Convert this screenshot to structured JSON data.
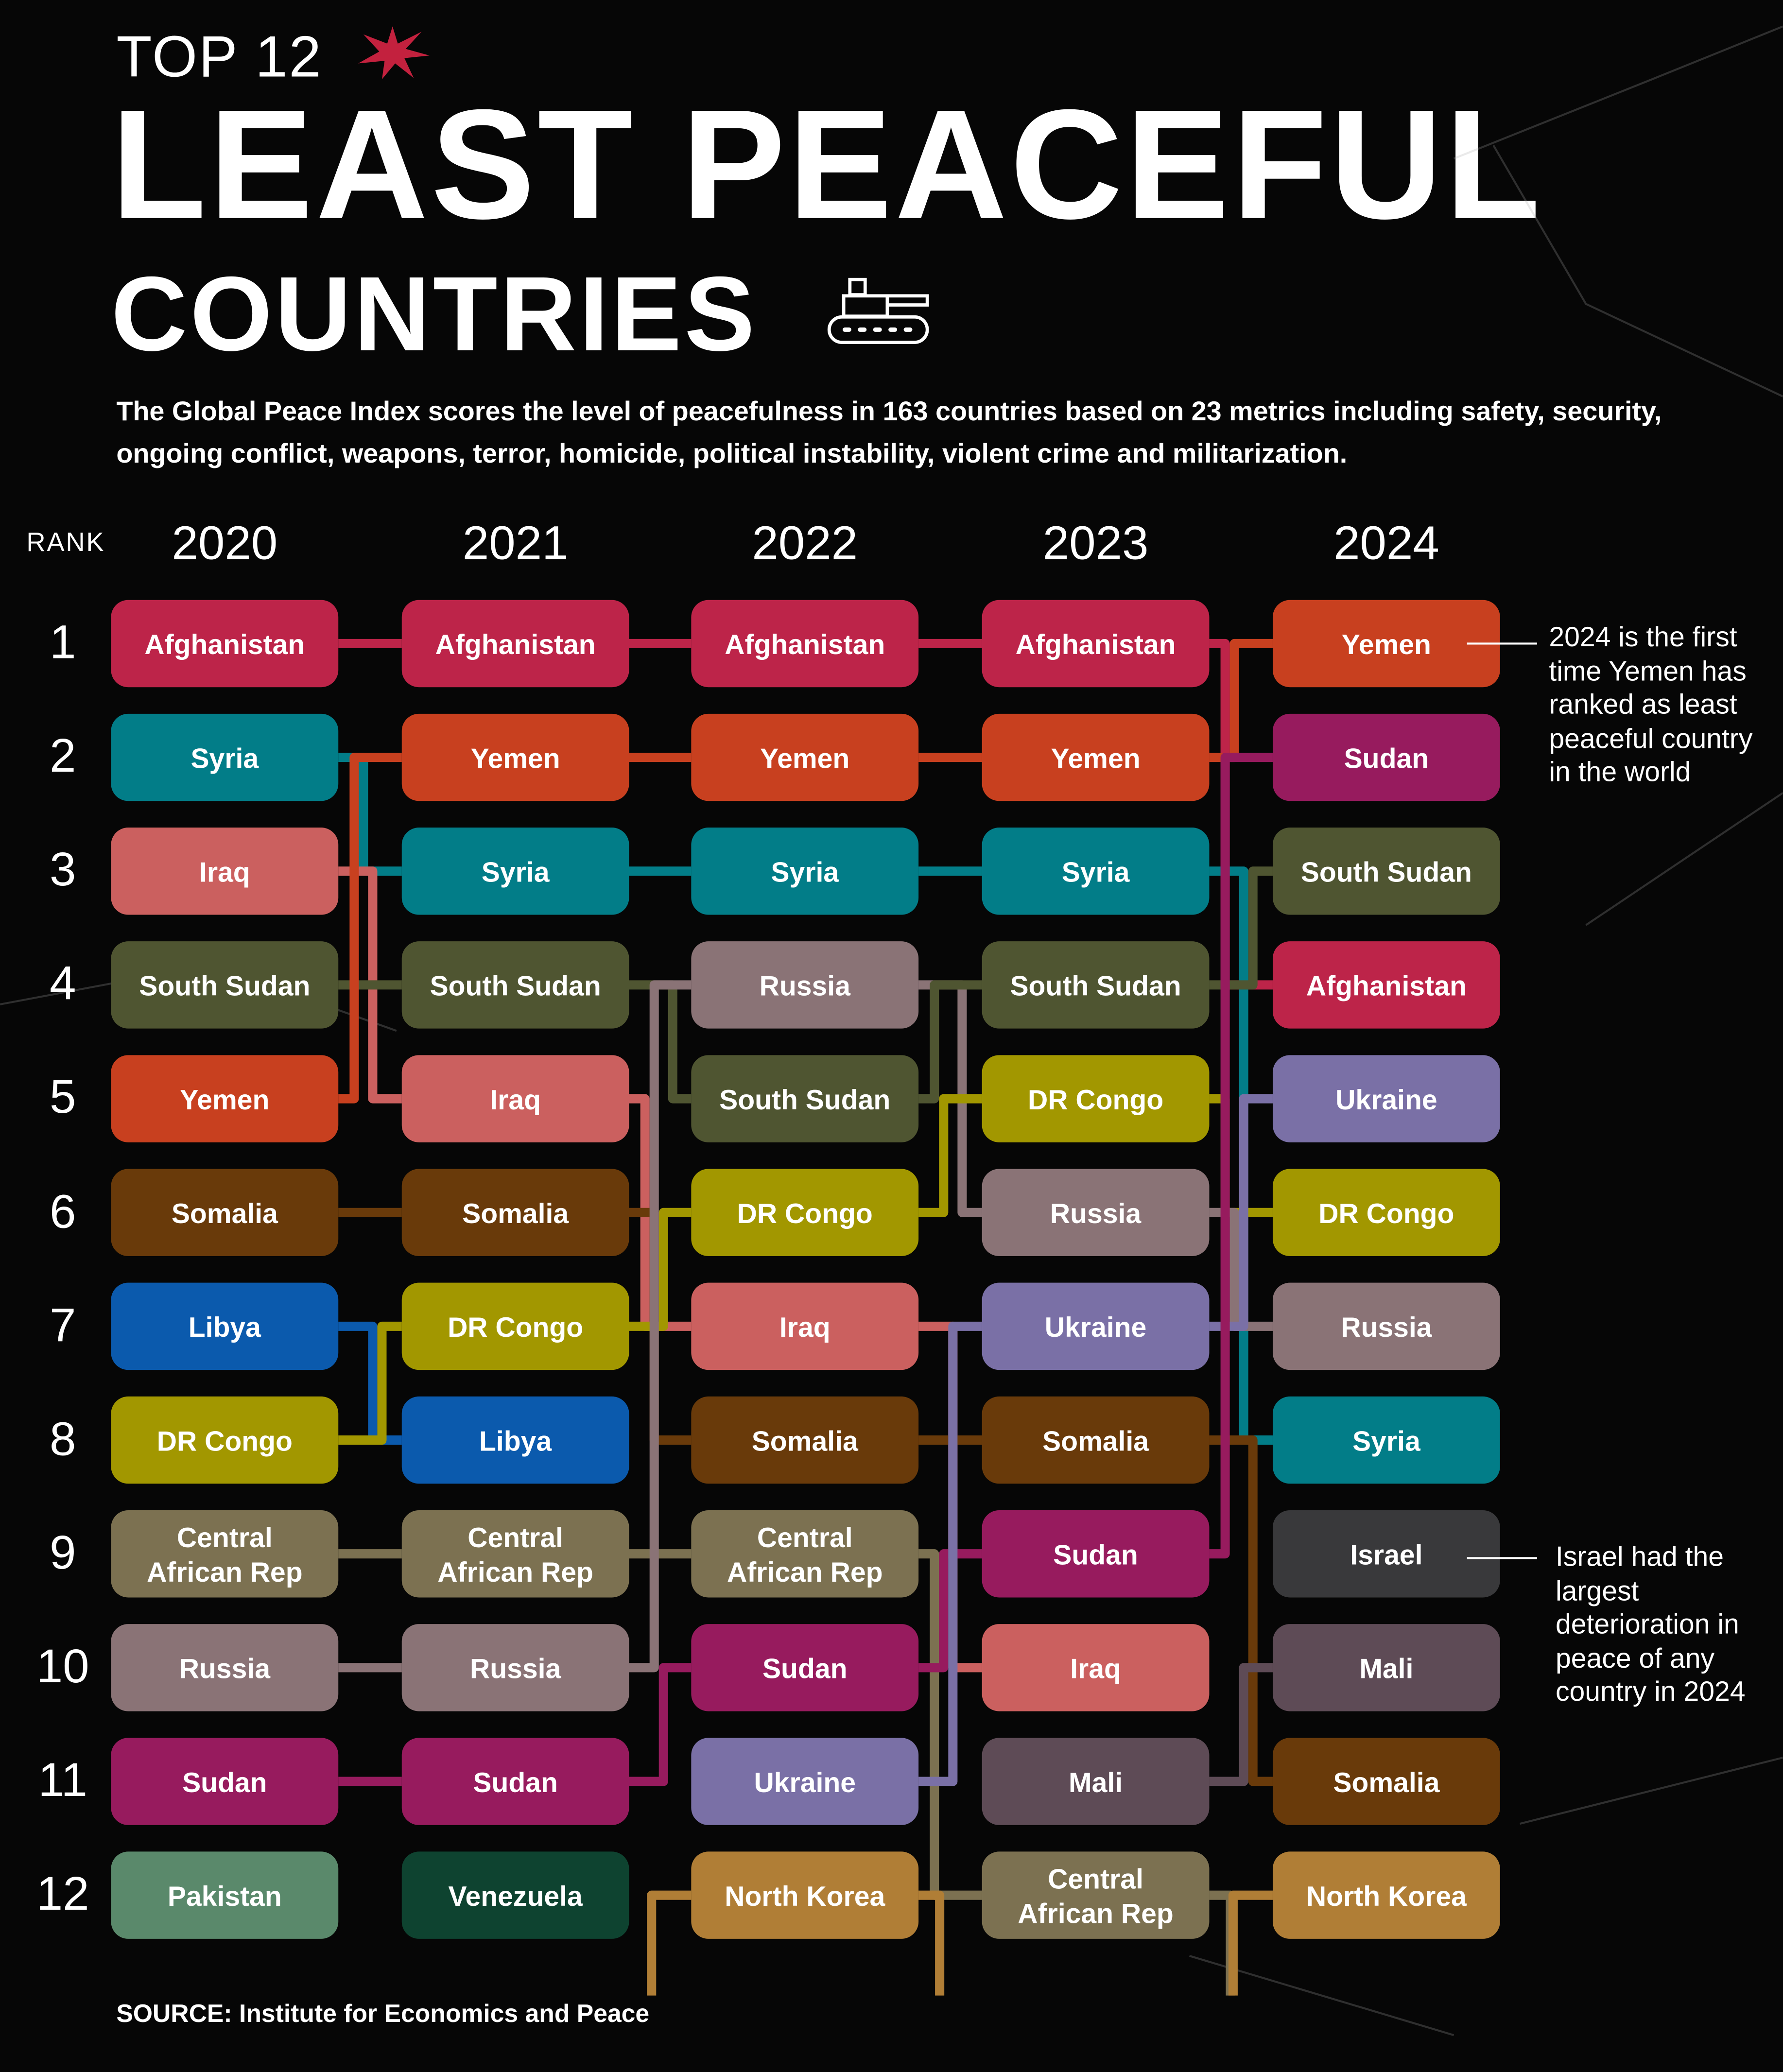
{
  "header": {
    "kicker": "TOP 12",
    "title_line1": "LEAST PEACEFUL",
    "title_line2": "COUNTRIES",
    "description": "The Global Peace Index scores the level of peacefulness in 163 countries based on 23 metrics including safety, security, ongoing conflict, weapons, terror, homicide, political instability, violent crime and militarization."
  },
  "icons": [
    "starburst-icon",
    "tank-icon"
  ],
  "rank_label": "RANK",
  "annotations": {
    "yemen": "2024 is the first time Yemen has ranked as least peaceful country in the world",
    "israel": "Israel had the largest deterioration in peace of any country in 2024"
  },
  "source": "SOURCE: Institute for Economics and Peace",
  "chart_data": {
    "type": "table",
    "subtype": "bump",
    "title": "Top 12 Least Peaceful Countries",
    "years": [
      "2020",
      "2021",
      "2022",
      "2023",
      "2024"
    ],
    "ranks": [
      "1",
      "2",
      "3",
      "4",
      "5",
      "6",
      "7",
      "8",
      "9",
      "10",
      "11",
      "12"
    ],
    "rankings": {
      "2020": [
        "Afghanistan",
        "Syria",
        "Iraq",
        "South Sudan",
        "Yemen",
        "Somalia",
        "Libya",
        "DR Congo",
        "Central African Rep",
        "Russia",
        "Sudan",
        "Pakistan"
      ],
      "2021": [
        "Afghanistan",
        "Yemen",
        "Syria",
        "South Sudan",
        "Iraq",
        "Somalia",
        "DR Congo",
        "Libya",
        "Central African Rep",
        "Russia",
        "Sudan",
        "Venezuela"
      ],
      "2022": [
        "Afghanistan",
        "Yemen",
        "Syria",
        "Russia",
        "South Sudan",
        "DR Congo",
        "Iraq",
        "Somalia",
        "Central African Rep",
        "Sudan",
        "Ukraine",
        "North Korea"
      ],
      "2023": [
        "Afghanistan",
        "Yemen",
        "Syria",
        "South Sudan",
        "DR Congo",
        "Russia",
        "Ukraine",
        "Somalia",
        "Sudan",
        "Iraq",
        "Mali",
        "Central African Rep"
      ],
      "2024": [
        "Yemen",
        "Sudan",
        "South Sudan",
        "Afghanistan",
        "Ukraine",
        "DR Congo",
        "Russia",
        "Syria",
        "Israel",
        "Mali",
        "Somalia",
        "North Korea"
      ]
    },
    "colors": {
      "Afghanistan": "#bd2449",
      "Syria": "#027d88",
      "Iraq": "#cb605f",
      "South Sudan": "#4f5531",
      "Yemen": "#c8401f",
      "Somalia": "#693a0a",
      "Libya": "#0b5aad",
      "DR Congo": "#a29700",
      "Central African Rep": "#7c7151",
      "Russia": "#8a7376",
      "Sudan": "#971b5e",
      "Pakistan": "#5a896b",
      "Venezuela": "#0e4330",
      "North Korea": "#b07e36",
      "Ukraine": "#7a70a6",
      "Mali": "#5e4b56",
      "Israel": "#39393b"
    }
  }
}
